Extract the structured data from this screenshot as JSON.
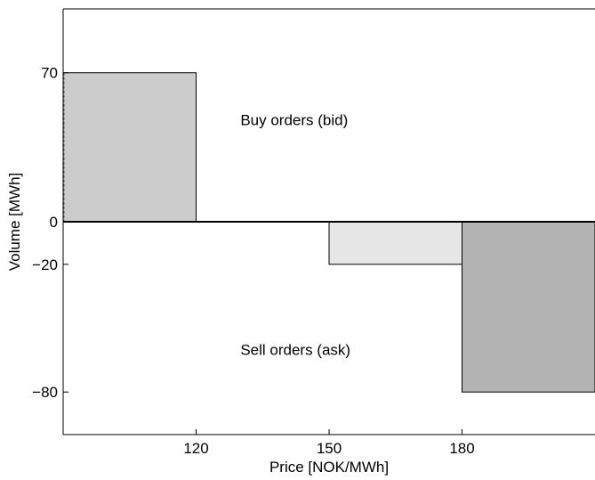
{
  "chart_data": {
    "type": "bar",
    "xlabel": "Price [NOK/MWh]",
    "ylabel": "Volume [MWh]",
    "xlim": [
      90,
      210
    ],
    "ylim": [
      -100,
      100
    ],
    "xticks": [
      120,
      150,
      180
    ],
    "yticks": [
      70,
      0,
      -20,
      -80
    ],
    "ytick_labels": [
      "70",
      "0",
      "−20",
      "−80"
    ],
    "grid": false,
    "bars": [
      {
        "x0": 90,
        "x1": 120,
        "value": 70,
        "side": "bid",
        "color": "#cccccc"
      },
      {
        "x0": 150,
        "x1": 180,
        "value": -20,
        "side": "ask",
        "color": "#e6e6e6"
      },
      {
        "x0": 180,
        "x1": 210,
        "value": -80,
        "side": "ask",
        "color": "#b3b3b3"
      }
    ],
    "annotations": [
      {
        "text": "Buy orders (bid)",
        "x": 130,
        "y": 48
      },
      {
        "text": "Sell orders (ask)",
        "x": 130,
        "y": -60
      }
    ]
  }
}
